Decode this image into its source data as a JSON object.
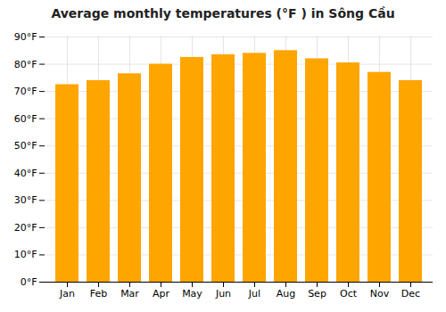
{
  "chart_data": {
    "type": "bar",
    "title": "Average monthly temperatures (°F ) in Sông Cầu",
    "categories": [
      "Jan",
      "Feb",
      "Mar",
      "Apr",
      "May",
      "Jun",
      "Jul",
      "Aug",
      "Sep",
      "Oct",
      "Nov",
      "Dec"
    ],
    "values": [
      72.5,
      74.0,
      76.5,
      80.0,
      82.5,
      83.5,
      84.0,
      85.0,
      82.0,
      80.5,
      77.0,
      74.0
    ],
    "color": "#FFA500",
    "ylim": [
      0,
      90
    ],
    "yticks": [
      {
        "value": 0,
        "label": "0°F"
      },
      {
        "value": 10,
        "label": "10°F"
      },
      {
        "value": 20,
        "label": "20°F"
      },
      {
        "value": 30,
        "label": "30°F"
      },
      {
        "value": 40,
        "label": "40°F"
      },
      {
        "value": 50,
        "label": "50°F"
      },
      {
        "value": 60,
        "label": "60°F"
      },
      {
        "value": 70,
        "label": "70°F"
      },
      {
        "value": 80,
        "label": "80°F"
      },
      {
        "value": 90,
        "label": "90°F"
      }
    ],
    "grid": true
  }
}
